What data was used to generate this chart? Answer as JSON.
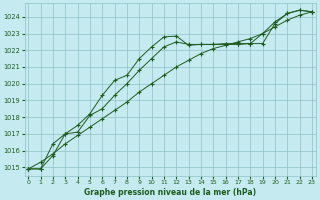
{
  "title": "Graphe pression niveau de la mer (hPa)",
  "background_color": "#c5eaf0",
  "grid_color": "#90bfc8",
  "line_color": "#1e5c1e",
  "series1": {
    "x": [
      0,
      1,
      2,
      3,
      4,
      5,
      6,
      7,
      8,
      9,
      10,
      11,
      12,
      13,
      14,
      15,
      16,
      17,
      18,
      19,
      20,
      21,
      22,
      23
    ],
    "y": [
      1014.9,
      1014.9,
      1015.7,
      1017.0,
      1017.5,
      1018.2,
      1019.3,
      1020.2,
      1020.5,
      1021.5,
      1022.2,
      1022.8,
      1022.85,
      1022.3,
      1022.35,
      1022.35,
      1022.4,
      1022.4,
      1022.4,
      1022.4,
      1023.6,
      1024.2,
      1024.4,
      1024.3
    ]
  },
  "series2": {
    "x": [
      0,
      1,
      2,
      3,
      4,
      5,
      6,
      7,
      8,
      9,
      10,
      11,
      12,
      13,
      14,
      15,
      16,
      17,
      18,
      19,
      20,
      21,
      22,
      23
    ],
    "y": [
      1014.9,
      1014.9,
      1016.4,
      1017.0,
      1017.1,
      1018.1,
      1018.5,
      1019.3,
      1020.0,
      1020.8,
      1021.5,
      1022.2,
      1022.5,
      1022.35,
      1022.35,
      1022.35,
      1022.35,
      1022.35,
      1022.4,
      1023.0,
      1023.7,
      1024.2,
      1024.4,
      1024.3
    ]
  },
  "series3": {
    "x": [
      0,
      1,
      2,
      3,
      4,
      5,
      6,
      7,
      8,
      9,
      10,
      11,
      12,
      13,
      14,
      15,
      16,
      17,
      18,
      19,
      20,
      21,
      22,
      23
    ],
    "y": [
      1014.9,
      1015.3,
      1015.8,
      1016.4,
      1016.9,
      1017.4,
      1017.9,
      1018.4,
      1018.9,
      1019.5,
      1020.0,
      1020.5,
      1021.0,
      1021.4,
      1021.8,
      1022.1,
      1022.3,
      1022.5,
      1022.7,
      1023.0,
      1023.4,
      1023.8,
      1024.1,
      1024.3
    ]
  },
  "ylim": [
    1014.5,
    1024.8
  ],
  "yticks": [
    1015,
    1016,
    1017,
    1018,
    1019,
    1020,
    1021,
    1022,
    1023,
    1024
  ],
  "xlim": [
    -0.3,
    23.3
  ],
  "xticks": [
    0,
    1,
    2,
    3,
    4,
    5,
    6,
    7,
    8,
    9,
    10,
    11,
    12,
    13,
    14,
    15,
    16,
    17,
    18,
    19,
    20,
    21,
    22,
    23
  ]
}
